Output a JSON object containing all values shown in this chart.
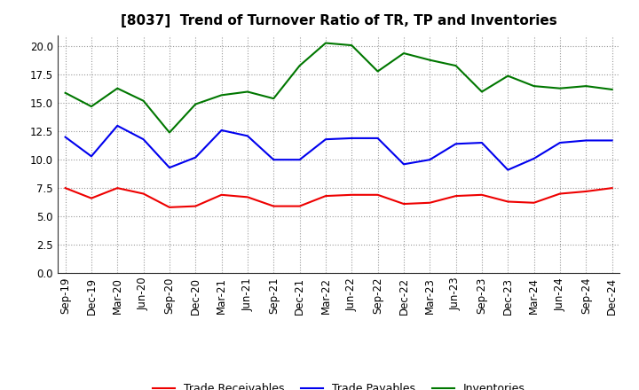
{
  "title": "[8037]  Trend of Turnover Ratio of TR, TP and Inventories",
  "x_labels": [
    "Sep-19",
    "Dec-19",
    "Mar-20",
    "Jun-20",
    "Sep-20",
    "Dec-20",
    "Mar-21",
    "Jun-21",
    "Sep-21",
    "Dec-21",
    "Mar-22",
    "Jun-22",
    "Sep-22",
    "Dec-22",
    "Mar-23",
    "Jun-23",
    "Sep-23",
    "Dec-23",
    "Mar-24",
    "Jun-24",
    "Sep-24",
    "Dec-24"
  ],
  "trade_receivables": [
    7.5,
    6.6,
    7.5,
    7.0,
    5.8,
    5.9,
    6.9,
    6.7,
    5.9,
    5.9,
    6.8,
    6.9,
    6.9,
    6.1,
    6.2,
    6.8,
    6.9,
    6.3,
    6.2,
    7.0,
    7.2,
    7.5
  ],
  "trade_payables": [
    12.0,
    10.3,
    13.0,
    11.8,
    9.3,
    10.2,
    12.6,
    12.1,
    10.0,
    10.0,
    11.8,
    11.9,
    11.9,
    9.6,
    10.0,
    11.4,
    11.5,
    9.1,
    10.1,
    11.5,
    11.7,
    11.7
  ],
  "inventories": [
    15.9,
    14.7,
    16.3,
    15.2,
    12.4,
    14.9,
    15.7,
    16.0,
    15.4,
    18.3,
    20.3,
    20.1,
    17.8,
    19.4,
    18.8,
    18.3,
    16.0,
    17.4,
    16.5,
    16.3,
    16.5,
    16.2
  ],
  "ylim": [
    0.0,
    21.0
  ],
  "yticks": [
    0.0,
    2.5,
    5.0,
    7.5,
    10.0,
    12.5,
    15.0,
    17.5,
    20.0
  ],
  "color_tr": "#ee0000",
  "color_tp": "#0000ee",
  "color_inv": "#007700",
  "legend_labels": [
    "Trade Receivables",
    "Trade Payables",
    "Inventories"
  ],
  "bg_color": "#ffffff",
  "grid_color": "#999999",
  "title_fontsize": 11,
  "tick_fontsize": 8.5
}
